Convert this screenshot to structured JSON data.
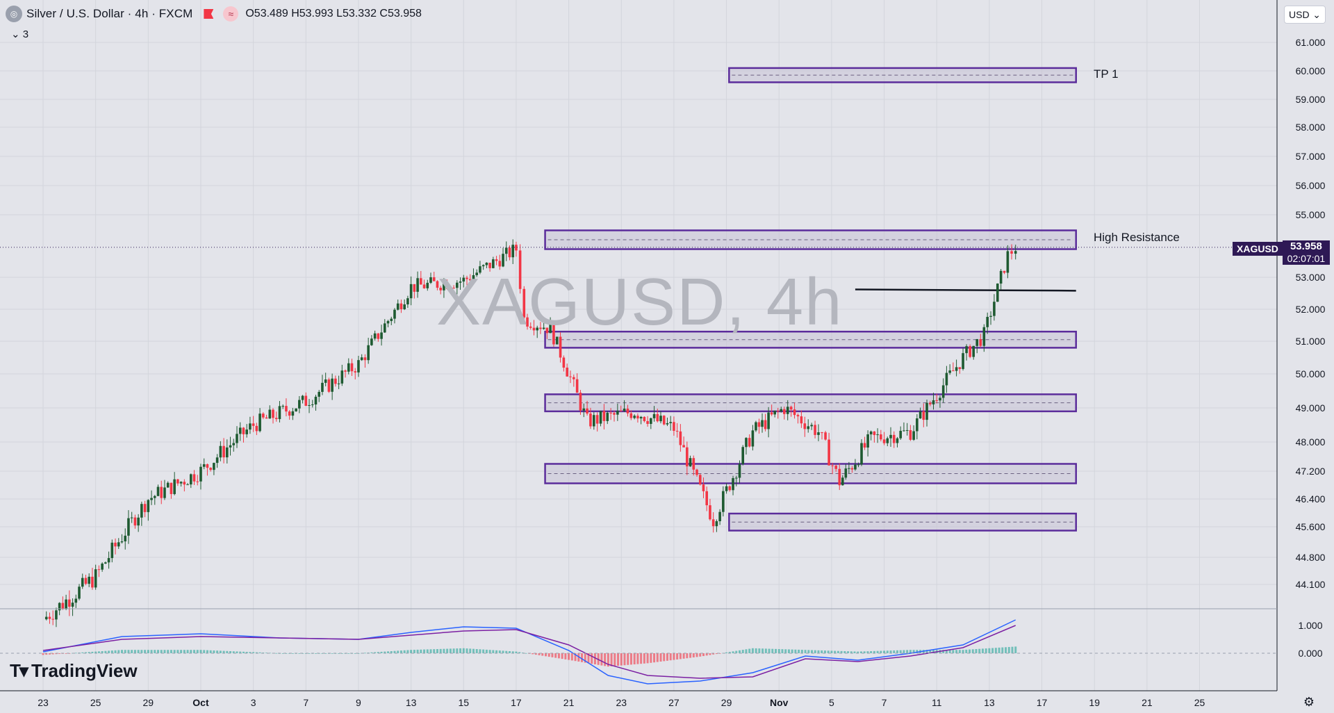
{
  "header": {
    "title": "Silver / U.S. Dollar · 4h · FXCM",
    "ohlc": "O53.489 H53.993 L53.332 C53.958",
    "indicator_count": "3",
    "currency": "USD"
  },
  "price_label": {
    "symbol": "XAGUSD",
    "price": "53.958",
    "countdown": "02:07:01"
  },
  "watermark": "XAGUSD, 4h",
  "annotations": {
    "tp1": "TP 1",
    "high_resistance": "High Resistance"
  },
  "brand": "TradingView",
  "colors": {
    "bull": "#1e5a31",
    "bear": "#f23645",
    "zone_border": "#5b2c9b",
    "zone_fill": "#c9c2d6",
    "macd": "#2962ff",
    "signal": "#7b1fa2",
    "hist_pos": "#26a69a",
    "hist_neg": "#f23645"
  },
  "chart_data": {
    "type": "candlestick",
    "price_axis_ticks": [
      "61.000",
      "60.000",
      "59.000",
      "58.000",
      "57.000",
      "56.000",
      "55.000",
      "53.000",
      "52.000",
      "51.000",
      "50.000",
      "49.000",
      "48.000",
      "47.200",
      "46.400",
      "45.600",
      "44.800",
      "44.100"
    ],
    "macd_axis_ticks": [
      "1.000",
      "0.000"
    ],
    "x_tick_labels": [
      [
        "23",
        0
      ],
      [
        "25",
        2
      ],
      [
        "29",
        4
      ],
      [
        "Oct",
        6
      ],
      [
        "3",
        8
      ],
      [
        "7",
        10
      ],
      [
        "9",
        12
      ],
      [
        "13",
        14
      ],
      [
        "15",
        16
      ],
      [
        "17",
        18
      ],
      [
        "21",
        20
      ],
      [
        "23",
        22
      ],
      [
        "27",
        24
      ],
      [
        "29",
        26
      ],
      [
        "Nov",
        28
      ],
      [
        "5",
        30
      ],
      [
        "7",
        32
      ],
      [
        "11",
        34
      ],
      [
        "13",
        36
      ],
      [
        "17",
        38
      ],
      [
        "19",
        40
      ],
      [
        "21",
        42
      ],
      [
        "25",
        44
      ]
    ],
    "price_path": [
      [
        0,
        43.2,
        "d"
      ],
      [
        2,
        44.3,
        "u"
      ],
      [
        4,
        46.4,
        "u"
      ],
      [
        6,
        47.2,
        "u"
      ],
      [
        8,
        48.5,
        "u"
      ],
      [
        10,
        49.2,
        "u"
      ],
      [
        12,
        50.3,
        "u"
      ],
      [
        14,
        52.7,
        "u"
      ],
      [
        16,
        52.9,
        "u"
      ],
      [
        18,
        53.9,
        "u"
      ],
      [
        18.3,
        51.7,
        "d"
      ],
      [
        19.3,
        51.4,
        "d"
      ],
      [
        20.7,
        48.6,
        "d"
      ],
      [
        22.5,
        48.9,
        "u"
      ],
      [
        24,
        48.4,
        "d"
      ],
      [
        25.5,
        45.8,
        "d"
      ],
      [
        27,
        48.3,
        "u"
      ],
      [
        28.2,
        49.0,
        "u"
      ],
      [
        29.5,
        48.3,
        "d"
      ],
      [
        30.3,
        46.9,
        "d"
      ],
      [
        31.5,
        48.1,
        "u"
      ],
      [
        33,
        48.3,
        "u"
      ],
      [
        35,
        50.5,
        "u"
      ],
      [
        35.8,
        51.2,
        "u"
      ],
      [
        36.7,
        53.7,
        "u"
      ],
      [
        37.0,
        53.96,
        "u"
      ]
    ],
    "zones": [
      {
        "label": "TP 1",
        "low": 59.6,
        "high": 60.1,
        "start": 26.1
      },
      {
        "label": "High Resistance",
        "low": 53.9,
        "high": 54.5,
        "start": 19.1
      },
      {
        "label": "",
        "low": 50.8,
        "high": 51.3,
        "start": 19.1
      },
      {
        "label": "",
        "low": 48.9,
        "high": 49.4,
        "start": 19.1
      },
      {
        "label": "",
        "low": 46.85,
        "high": 47.4,
        "start": 19.1
      },
      {
        "label": "",
        "low": 45.5,
        "high": 45.98,
        "start": 26.1
      }
    ],
    "zone_end": 39.3,
    "trend_line": {
      "x1": 30.9,
      "y1": 52.62,
      "x2": 39.3,
      "y2": 52.58
    },
    "current_price": 53.958,
    "macd_path": [
      [
        0,
        0.05
      ],
      [
        3,
        0.6
      ],
      [
        6,
        0.7
      ],
      [
        9,
        0.55
      ],
      [
        12,
        0.5
      ],
      [
        14,
        0.75
      ],
      [
        16,
        0.95
      ],
      [
        18,
        0.9
      ],
      [
        20,
        0.1
      ],
      [
        21.5,
        -0.8
      ],
      [
        23,
        -1.1
      ],
      [
        25,
        -1.0
      ],
      [
        27,
        -0.7
      ],
      [
        29,
        -0.1
      ],
      [
        31,
        -0.25
      ],
      [
        33,
        0.0
      ],
      [
        35,
        0.3
      ],
      [
        37,
        1.2
      ]
    ],
    "signal_path": [
      [
        0,
        0.1
      ],
      [
        3,
        0.5
      ],
      [
        6,
        0.6
      ],
      [
        9,
        0.55
      ],
      [
        12,
        0.5
      ],
      [
        14,
        0.65
      ],
      [
        16,
        0.8
      ],
      [
        18,
        0.85
      ],
      [
        20,
        0.3
      ],
      [
        21.5,
        -0.4
      ],
      [
        23,
        -0.8
      ],
      [
        25,
        -0.9
      ],
      [
        27,
        -0.85
      ],
      [
        29,
        -0.2
      ],
      [
        31,
        -0.3
      ],
      [
        33,
        -0.1
      ],
      [
        35,
        0.2
      ],
      [
        37,
        1.0
      ]
    ]
  }
}
